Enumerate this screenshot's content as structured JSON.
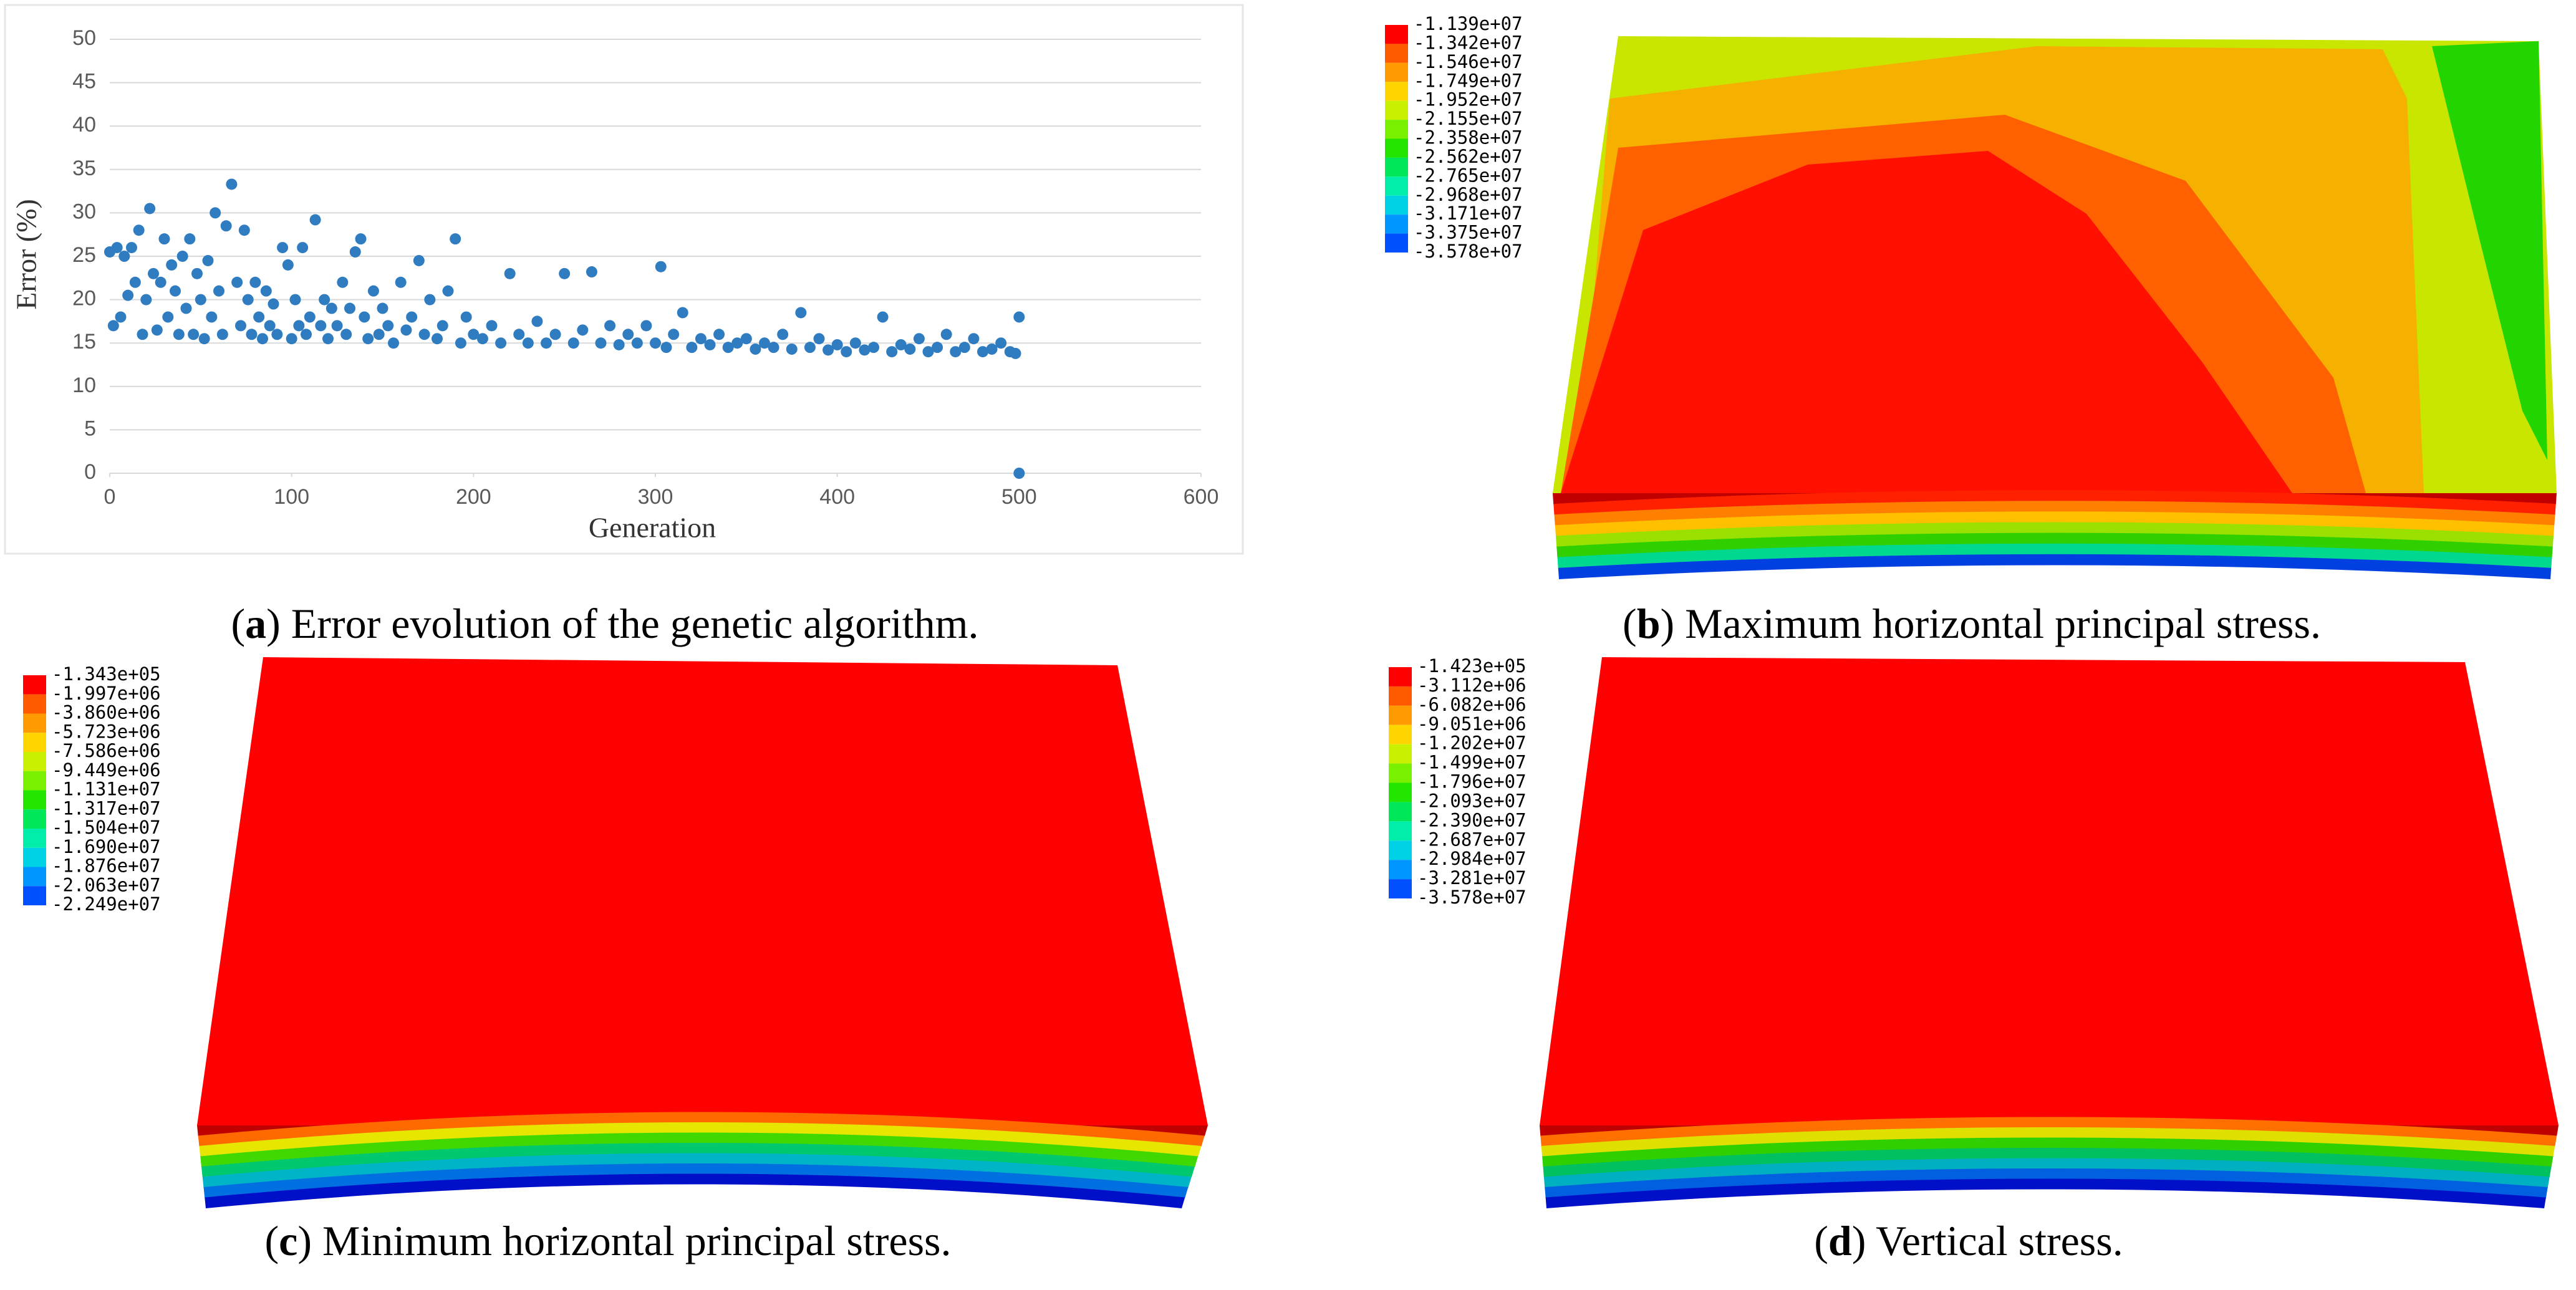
{
  "chart_data": {
    "type": "scatter",
    "x_label": "Generation",
    "y_label": "Error (%)",
    "caption": {
      "open": "(",
      "letter": "a",
      "text": ") Error evolution of the genetic algorithm."
    },
    "color": "#2f7cc0",
    "grid": true,
    "xlim": [
      0,
      600
    ],
    "xticks": [
      0,
      100,
      200,
      300,
      400,
      500,
      600
    ],
    "ylim": [
      0,
      50
    ],
    "yticks": [
      0,
      5,
      10,
      15,
      20,
      25,
      30,
      35,
      40,
      45,
      50
    ],
    "x": [
      0,
      2,
      4,
      6,
      8,
      10,
      12,
      14,
      16,
      18,
      20,
      22,
      24,
      26,
      28,
      30,
      32,
      34,
      36,
      38,
      40,
      42,
      44,
      46,
      48,
      50,
      52,
      54,
      56,
      58,
      60,
      62,
      64,
      67,
      70,
      72,
      74,
      76,
      78,
      80,
      82,
      84,
      86,
      88,
      90,
      92,
      95,
      98,
      100,
      102,
      104,
      106,
      108,
      110,
      113,
      116,
      118,
      120,
      122,
      125,
      128,
      130,
      132,
      135,
      138,
      140,
      142,
      145,
      148,
      150,
      153,
      156,
      160,
      163,
      166,
      170,
      173,
      176,
      180,
      183,
      186,
      190,
      193,
      196,
      200,
      205,
      210,
      215,
      220,
      225,
      230,
      235,
      240,
      245,
      250,
      255,
      260,
      265,
      270,
      275,
      280,
      285,
      290,
      295,
      300,
      303,
      306,
      310,
      315,
      320,
      325,
      330,
      335,
      340,
      345,
      350,
      355,
      360,
      365,
      370,
      375,
      380,
      385,
      390,
      395,
      400,
      405,
      410,
      415,
      420,
      425,
      430,
      435,
      440,
      445,
      450,
      455,
      460,
      465,
      470,
      475,
      480,
      485,
      490,
      495,
      498,
      500,
      500
    ],
    "y": [
      25.5,
      17,
      26,
      18,
      25,
      20.5,
      26,
      22,
      28,
      16,
      20,
      30.5,
      23,
      16.5,
      22,
      27,
      18,
      24,
      21,
      16,
      25,
      19,
      27,
      16,
      23,
      20,
      15.5,
      24.5,
      18,
      30,
      21,
      16,
      28.5,
      33.3,
      22,
      17,
      28,
      20,
      16,
      22,
      18,
      15.5,
      21,
      17,
      19.5,
      16,
      26,
      24,
      15.5,
      20,
      17,
      26,
      16,
      18,
      29.2,
      17,
      20,
      15.5,
      19,
      17,
      22,
      16,
      19,
      25.5,
      27,
      18,
      15.5,
      21,
      16,
      19,
      17,
      15,
      22,
      16.5,
      18,
      24.5,
      16,
      20,
      15.5,
      17,
      21,
      27,
      15,
      18,
      16,
      15.5,
      17,
      15,
      23,
      16,
      15,
      17.5,
      15,
      16,
      23,
      15,
      16.5,
      23.2,
      15,
      17,
      14.8,
      16,
      15,
      17,
      15,
      23.8,
      14.5,
      16,
      18.5,
      14.5,
      15.5,
      14.8,
      16,
      14.5,
      15,
      15.5,
      14.3,
      15,
      14.5,
      16,
      14.3,
      18.5,
      14.5,
      15.5,
      14.2,
      14.8,
      14,
      15,
      14.2,
      14.5,
      18,
      14,
      14.8,
      14.3,
      15.5,
      14,
      14.5,
      16,
      14,
      14.5,
      15.5,
      14,
      14.3,
      15,
      14,
      13.8,
      18,
      0
    ]
  },
  "legend_colors": [
    "#ff0000",
    "#ff5a00",
    "#ff9a00",
    "#ffd500",
    "#c8f000",
    "#78f000",
    "#22e600",
    "#00e85a",
    "#00eeaa",
    "#00d2e6",
    "#0096ff",
    "#0050ff"
  ],
  "panels": [
    {
      "caption": {
        "open": "(",
        "letter": "b",
        "text": ") Maximum horizontal principal stress."
      },
      "legend": [
        "-1.139e+07",
        "-1.342e+07",
        "-1.546e+07",
        "-1.749e+07",
        "-1.952e+07",
        "-2.155e+07",
        "-2.358e+07",
        "-2.562e+07",
        "-2.765e+07",
        "-2.968e+07",
        "-3.171e+07",
        "-3.375e+07",
        "-3.578e+07"
      ]
    },
    {
      "caption": {
        "open": "(",
        "letter": "c",
        "text": ") Minimum horizontal principal stress."
      },
      "legend": [
        "-1.343e+05",
        "-1.997e+06",
        "-3.860e+06",
        "-5.723e+06",
        "-7.586e+06",
        "-9.449e+06",
        "-1.131e+07",
        "-1.317e+07",
        "-1.504e+07",
        "-1.690e+07",
        "-1.876e+07",
        "-2.063e+07",
        "-2.249e+07"
      ]
    },
    {
      "caption": {
        "open": "(",
        "letter": "d",
        "text": ") Vertical stress."
      },
      "legend": [
        "-1.423e+05",
        "-3.112e+06",
        "-6.082e+06",
        "-9.051e+06",
        "-1.202e+07",
        "-1.499e+07",
        "-1.796e+07",
        "-2.093e+07",
        "-2.390e+07",
        "-2.687e+07",
        "-2.984e+07",
        "-3.281e+07",
        "-3.578e+07"
      ]
    }
  ]
}
